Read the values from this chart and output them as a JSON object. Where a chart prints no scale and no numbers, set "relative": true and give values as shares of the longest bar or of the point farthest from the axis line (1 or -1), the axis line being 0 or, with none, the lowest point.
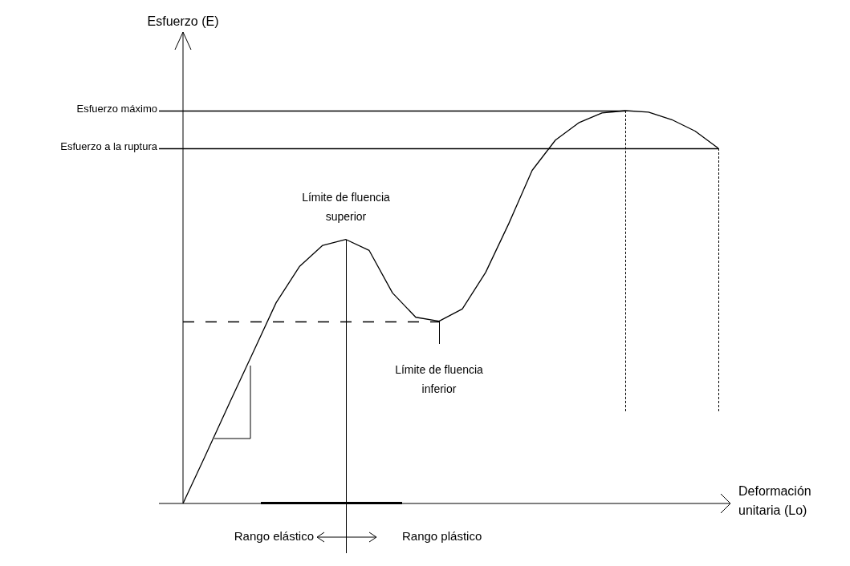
{
  "chart_data": {
    "type": "line",
    "relative": true,
    "xlabel": "Deformación unitaria (Lo)",
    "marker": "none",
    "line_style": "solid",
    "categories": [
      null,
      null,
      null,
      null,
      null,
      null,
      null,
      null,
      null,
      null,
      null,
      null,
      null,
      null,
      null,
      null,
      null,
      null,
      null,
      null,
      null,
      null,
      null,
      null
    ],
    "series": [
      {
        "color": "#000000",
        "values": [
          0,
          0.127,
          0.256,
          0.383,
          0.511,
          0.603,
          0.657,
          0.672,
          0.644,
          0.536,
          0.474,
          0.464,
          0.495,
          0.588,
          0.713,
          0.848,
          0.925,
          0.969,
          0.994,
          1.0,
          0.996,
          0.977,
          0.948,
          0.904
        ]
      }
    ],
    "ref_lines": [
      {
        "axis": "y",
        "value": 1.0,
        "label": "Esfuerzo máximo",
        "line_style": "solid"
      },
      {
        "axis": "y",
        "value": 0.904,
        "label": "Esfuerzo a la ruptura",
        "line_style": "solid"
      },
      {
        "axis": "y",
        "value": 0.464,
        "line_style": "dashed"
      }
    ],
    "annotations": [
      "Límite de fluencia superior",
      "Límite de fluencia inferior",
      "Rango elástico",
      "Rango plástico",
      "Esfuerzo (E)"
    ]
  }
}
